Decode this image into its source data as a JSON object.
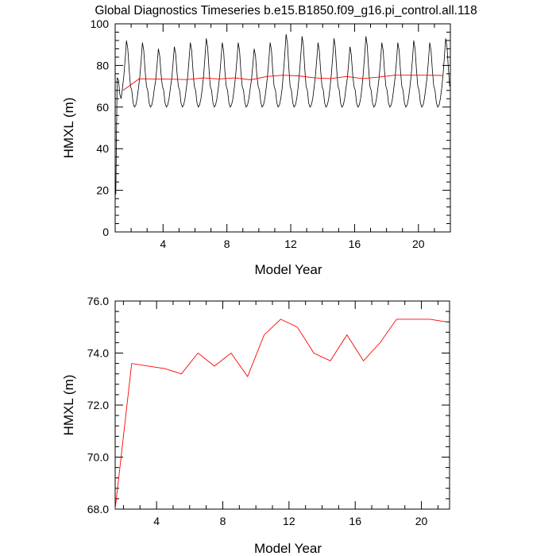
{
  "figure_title": "Global Diagnostics Timeseries b.e15.B1850.f09_g16.pi_control.all.118",
  "chart_data": [
    {
      "type": "line",
      "xlabel": "Model Year",
      "ylabel": "HMXL (m)",
      "xlim": [
        1,
        22
      ],
      "ylim": [
        0,
        100
      ],
      "xticks": [
        4,
        8,
        12,
        16,
        20
      ],
      "yticks": [
        0,
        20,
        40,
        60,
        80,
        100
      ],
      "ytick_labels": [
        "0",
        "20",
        "40",
        "60",
        "80",
        "100"
      ],
      "grid": false,
      "series": [
        {
          "kind": "monthly",
          "color": "#000000",
          "start_x": 1.0417,
          "step": 0.08333,
          "annual_pattern": [
            68,
            62,
            60,
            61,
            64,
            69,
            75,
            83,
            92,
            88,
            78,
            70
          ],
          "first_values": [
            18,
            74,
            73,
            66
          ],
          "year_peaks": [
            92,
            91,
            88,
            89,
            91,
            93,
            91,
            91,
            88,
            91,
            95,
            94,
            91,
            93,
            89,
            94,
            91,
            91,
            92,
            91,
            93
          ],
          "years": 21
        },
        {
          "kind": "annual",
          "color": "#ff0000",
          "x": [
            1.5,
            2.5,
            3.5,
            4.5,
            5.5,
            6.5,
            7.5,
            8.5,
            9.5,
            10.5,
            11.5,
            12.5,
            13.5,
            14.5,
            15.5,
            16.5,
            17.5,
            18.5,
            19.5,
            20.5,
            21.5
          ],
          "values": [
            68.0,
            73.6,
            73.5,
            73.4,
            73.2,
            74.0,
            73.5,
            74.0,
            73.1,
            74.7,
            75.3,
            75.0,
            74.0,
            73.7,
            74.7,
            73.7,
            74.4,
            75.3,
            75.3,
            75.3,
            75.2
          ]
        }
      ]
    },
    {
      "type": "line",
      "xlabel": "Model Year",
      "ylabel": "HMXL (m)",
      "xlim": [
        1.5,
        21.7
      ],
      "ylim": [
        68,
        76
      ],
      "xticks": [
        4,
        8,
        12,
        16,
        20
      ],
      "yticks": [
        68,
        70,
        72,
        74,
        76
      ],
      "ytick_labels": [
        "68.0",
        "70.0",
        "72.0",
        "74.0",
        "76.0"
      ],
      "grid": false,
      "series": [
        {
          "kind": "annual",
          "color": "#ff0000",
          "x": [
            1.5,
            2.5,
            3.5,
            4.5,
            5.5,
            6.5,
            7.5,
            8.5,
            9.5,
            10.5,
            11.5,
            12.5,
            13.5,
            14.5,
            15.5,
            16.5,
            17.5,
            18.5,
            19.5,
            20.5,
            21.5
          ],
          "values": [
            68.0,
            73.6,
            73.5,
            73.4,
            73.2,
            74.0,
            73.5,
            74.0,
            73.1,
            74.7,
            75.3,
            75.0,
            74.0,
            73.7,
            74.7,
            73.7,
            74.4,
            75.3,
            75.3,
            75.3,
            75.2
          ]
        }
      ]
    }
  ]
}
